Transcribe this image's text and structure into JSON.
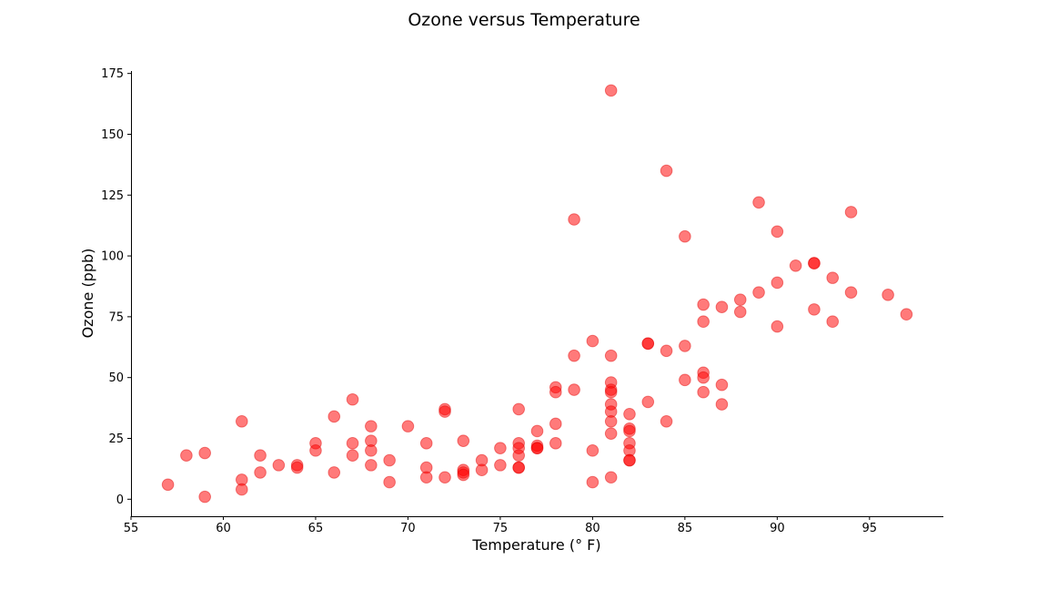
{
  "chart_data": {
    "type": "scatter",
    "title": "Ozone versus Temperature",
    "xlabel": "Temperature (° F)",
    "ylabel": "Ozone (ppb)",
    "xlim": [
      55,
      99
    ],
    "ylim": [
      -7,
      176
    ],
    "xticks": [
      55,
      60,
      65,
      70,
      75,
      80,
      85,
      90,
      95
    ],
    "yticks": [
      0,
      25,
      50,
      75,
      100,
      125,
      150,
      175
    ],
    "grid": false,
    "marker_color": "#ff0000",
    "points": [
      [
        57,
        6
      ],
      [
        58,
        18
      ],
      [
        59,
        19
      ],
      [
        59,
        1
      ],
      [
        61,
        32
      ],
      [
        61,
        8
      ],
      [
        61,
        4
      ],
      [
        62,
        18
      ],
      [
        62,
        11
      ],
      [
        63,
        14
      ],
      [
        64,
        14
      ],
      [
        64,
        13
      ],
      [
        65,
        23
      ],
      [
        65,
        20
      ],
      [
        66,
        34
      ],
      [
        66,
        11
      ],
      [
        67,
        41
      ],
      [
        67,
        23
      ],
      [
        67,
        18
      ],
      [
        68,
        30
      ],
      [
        68,
        24
      ],
      [
        68,
        20
      ],
      [
        68,
        14
      ],
      [
        69,
        16
      ],
      [
        69,
        7
      ],
      [
        70,
        30
      ],
      [
        71,
        23
      ],
      [
        71,
        13
      ],
      [
        71,
        9
      ],
      [
        72,
        37
      ],
      [
        72,
        36
      ],
      [
        72,
        9
      ],
      [
        73,
        24
      ],
      [
        73,
        12
      ],
      [
        73,
        11
      ],
      [
        73,
        10
      ],
      [
        74,
        16
      ],
      [
        74,
        12
      ],
      [
        75,
        21
      ],
      [
        75,
        14
      ],
      [
        76,
        37
      ],
      [
        76,
        23
      ],
      [
        76,
        21
      ],
      [
        76,
        18
      ],
      [
        76,
        13
      ],
      [
        76,
        13
      ],
      [
        77,
        28
      ],
      [
        77,
        22
      ],
      [
        77,
        21
      ],
      [
        77,
        21
      ],
      [
        78,
        46
      ],
      [
        78,
        44
      ],
      [
        78,
        31
      ],
      [
        78,
        23
      ],
      [
        79,
        115
      ],
      [
        79,
        59
      ],
      [
        79,
        45
      ],
      [
        80,
        65
      ],
      [
        80,
        20
      ],
      [
        80,
        7
      ],
      [
        81,
        168
      ],
      [
        81,
        59
      ],
      [
        81,
        48
      ],
      [
        81,
        45
      ],
      [
        81,
        44
      ],
      [
        81,
        39
      ],
      [
        81,
        36
      ],
      [
        81,
        32
      ],
      [
        81,
        27
      ],
      [
        81,
        9
      ],
      [
        82,
        35
      ],
      [
        82,
        29
      ],
      [
        82,
        28
      ],
      [
        82,
        23
      ],
      [
        82,
        20
      ],
      [
        82,
        16
      ],
      [
        82,
        16
      ],
      [
        83,
        64
      ],
      [
        83,
        64
      ],
      [
        83,
        40
      ],
      [
        84,
        135
      ],
      [
        84,
        61
      ],
      [
        84,
        32
      ],
      [
        85,
        108
      ],
      [
        85,
        63
      ],
      [
        85,
        49
      ],
      [
        86,
        80
      ],
      [
        86,
        73
      ],
      [
        86,
        52
      ],
      [
        86,
        50
      ],
      [
        86,
        44
      ],
      [
        87,
        79
      ],
      [
        87,
        47
      ],
      [
        87,
        39
      ],
      [
        88,
        82
      ],
      [
        88,
        77
      ],
      [
        89,
        122
      ],
      [
        89,
        85
      ],
      [
        90,
        110
      ],
      [
        90,
        89
      ],
      [
        90,
        71
      ],
      [
        91,
        96
      ],
      [
        92,
        97
      ],
      [
        92,
        97
      ],
      [
        92,
        78
      ],
      [
        93,
        91
      ],
      [
        93,
        73
      ],
      [
        94,
        118
      ],
      [
        94,
        85
      ],
      [
        96,
        84
      ],
      [
        97,
        76
      ]
    ]
  }
}
